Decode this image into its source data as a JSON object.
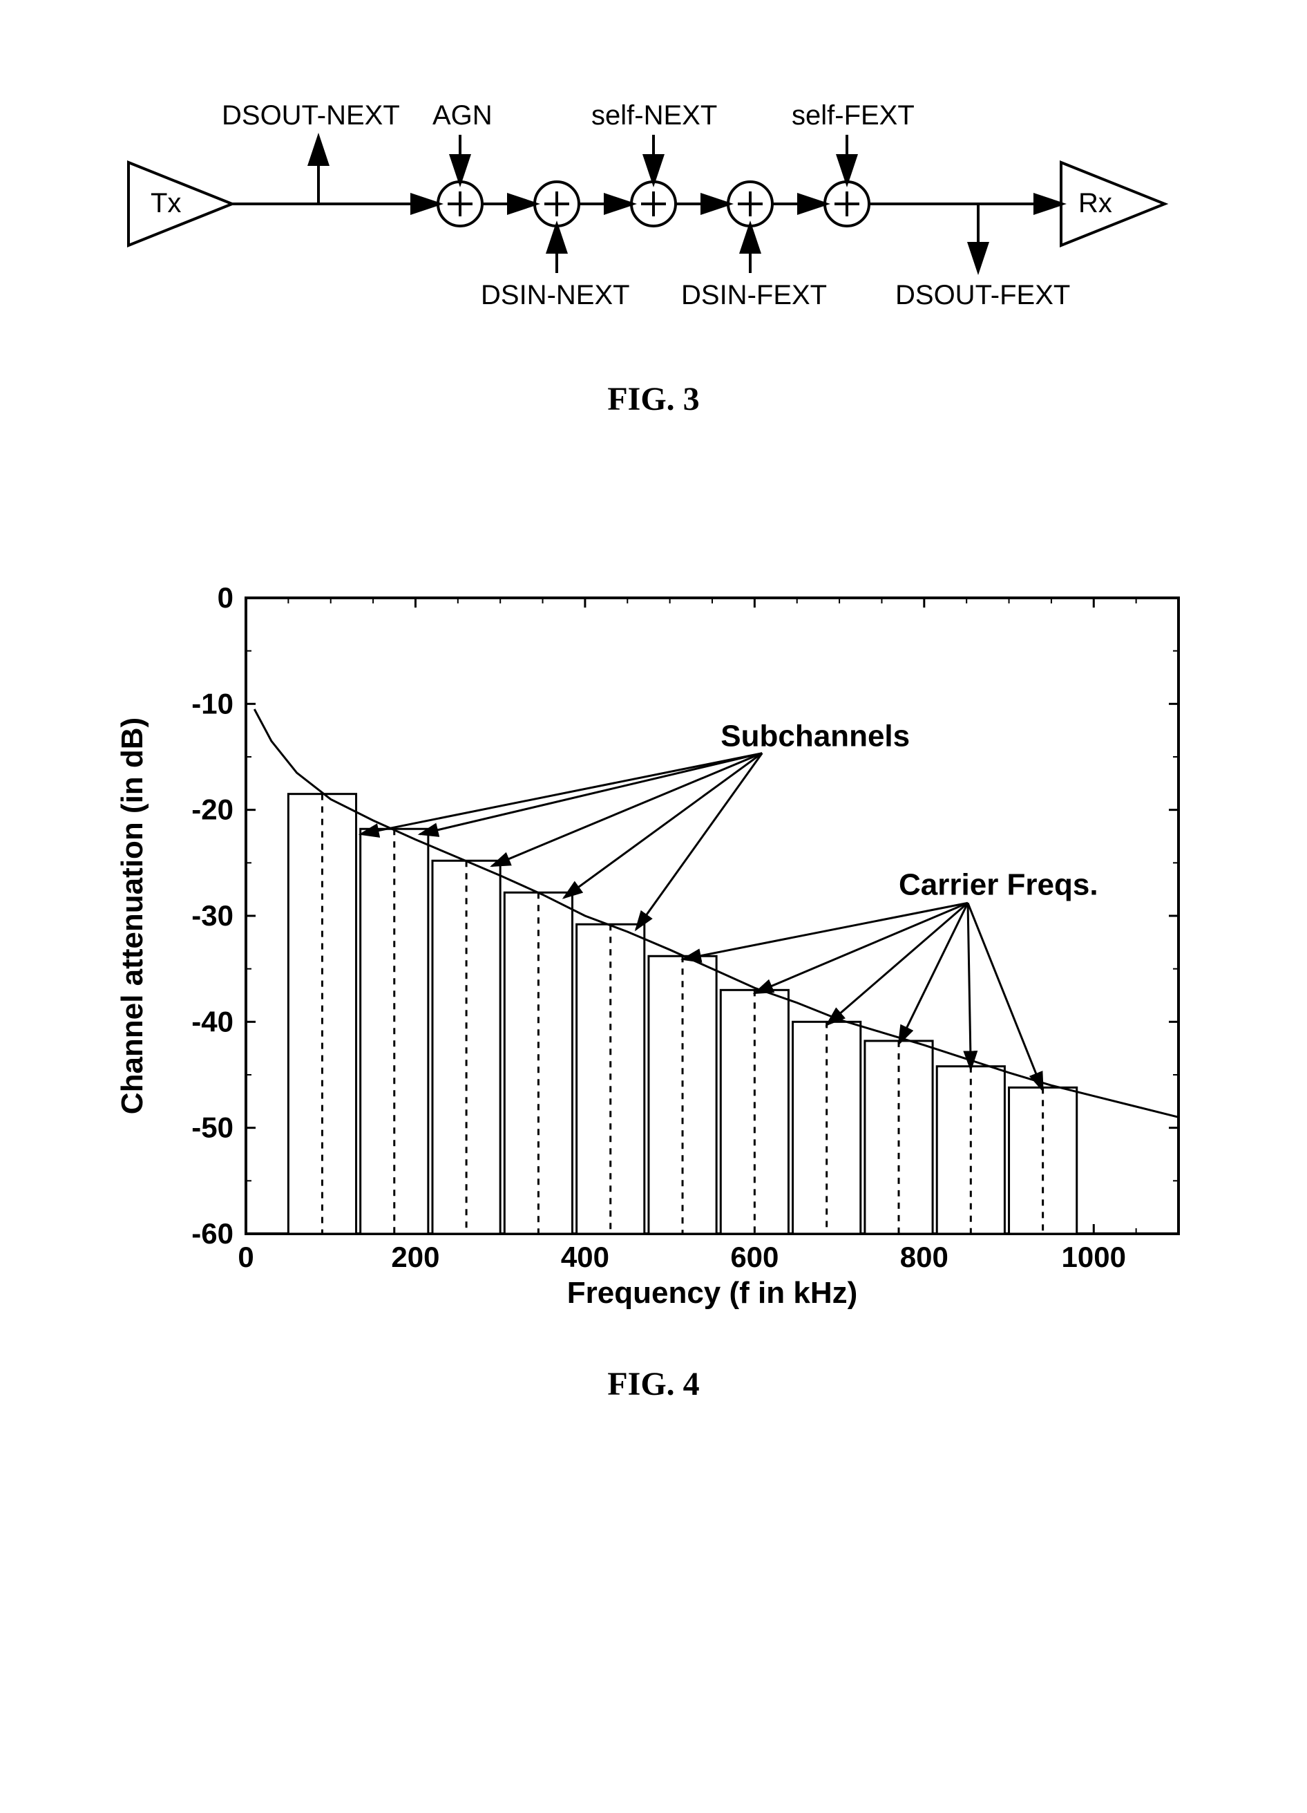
{
  "fig3": {
    "caption": "FIG. 3",
    "tx": "Tx",
    "rx": "Rx",
    "labels_top": [
      "DSOUT-NEXT",
      "AGN",
      "self-NEXT",
      "self-FEXT"
    ],
    "labels_bottom": [
      "DSIN-NEXT",
      "DSIN-FEXT",
      "DSOUT-FEXT"
    ],
    "stroke": "#000000",
    "stroke_width": 4,
    "font_size_label": 40,
    "font_size_node": 40,
    "font_weight_label": "normal"
  },
  "fig4": {
    "caption": "FIG. 4",
    "xlabel": "Frequency (f in kHz)",
    "ylabel": "Channel attenuation (in dB)",
    "annotation_subchannels": "Subchannels",
    "annotation_carriers": "Carrier Freqs.",
    "xlim": [
      0,
      1100
    ],
    "ylim": [
      -60,
      0
    ],
    "xticks": [
      0,
      200,
      400,
      600,
      800,
      1000
    ],
    "yticks": [
      -60,
      -50,
      -40,
      -30,
      -20,
      -10,
      0
    ],
    "bar_width_khz": 80,
    "bar_start_x": [
      50,
      135,
      220,
      305,
      390,
      475,
      560,
      645,
      730,
      815,
      900
    ],
    "bar_heights_db": [
      -18.5,
      -21.8,
      -24.8,
      -27.8,
      -30.8,
      -33.8,
      -37.0,
      -40.0,
      -41.8,
      -44.2,
      -46.2
    ],
    "curve": [
      [
        10,
        -10.5
      ],
      [
        30,
        -13.5
      ],
      [
        60,
        -16.5
      ],
      [
        100,
        -19.0
      ],
      [
        150,
        -21.0
      ],
      [
        200,
        -22.8
      ],
      [
        250,
        -24.5
      ],
      [
        300,
        -26.2
      ],
      [
        350,
        -28.0
      ],
      [
        400,
        -30.0
      ],
      [
        450,
        -31.5
      ],
      [
        500,
        -33.2
      ],
      [
        550,
        -35.0
      ],
      [
        600,
        -36.8
      ],
      [
        650,
        -38.2
      ],
      [
        700,
        -39.8
      ],
      [
        750,
        -41.0
      ],
      [
        800,
        -42.2
      ],
      [
        850,
        -43.5
      ],
      [
        900,
        -44.8
      ],
      [
        950,
        -46.0
      ],
      [
        1000,
        -47.0
      ],
      [
        1050,
        -48.0
      ],
      [
        1100,
        -49.0
      ]
    ],
    "background_color": "#ffffff",
    "axis_color": "#000000",
    "bar_fill": "#ffffff",
    "bar_stroke": "#000000",
    "bar_stroke_width": 3,
    "dash_pattern": "9,9",
    "curve_stroke": "#000000",
    "curve_width": 3,
    "axis_width": 4,
    "tick_font_size": 42,
    "label_font_size": 44,
    "annotation_font_size": 44,
    "tick_length": 14,
    "minor_tick_length": 8,
    "x_minor_step": 50,
    "y_minor_step": 5,
    "font_family_axis": "Arial, Helvetica, sans-serif"
  }
}
